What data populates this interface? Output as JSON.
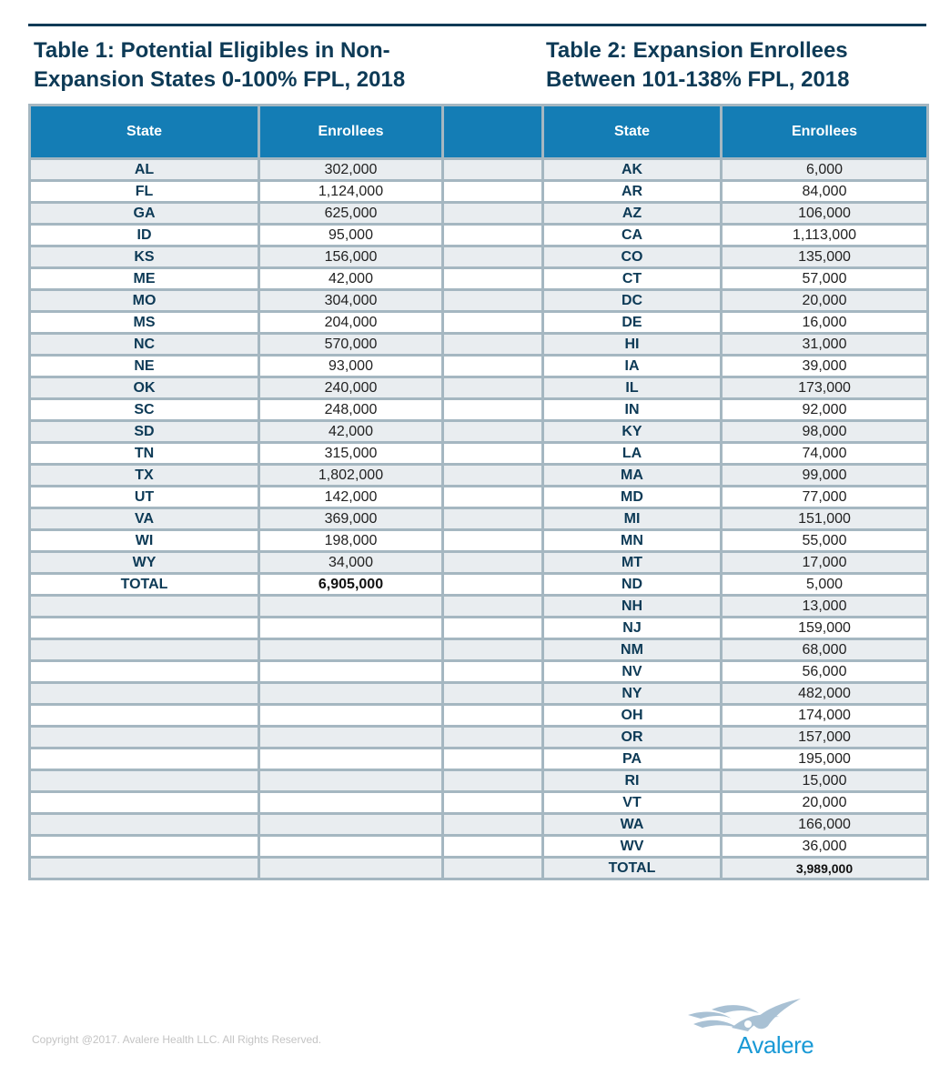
{
  "table1": {
    "title_line1": "Table 1: Potential Eligibles in Non-",
    "title_line2": "Expansion States 0-100% FPL, 2018",
    "headers": [
      "State",
      "Enrollees"
    ],
    "rows": [
      {
        "state": "AL",
        "enrollees": "302,000"
      },
      {
        "state": "FL",
        "enrollees": "1,124,000"
      },
      {
        "state": "GA",
        "enrollees": "625,000"
      },
      {
        "state": "ID",
        "enrollees": "95,000"
      },
      {
        "state": "KS",
        "enrollees": "156,000"
      },
      {
        "state": "ME",
        "enrollees": "42,000"
      },
      {
        "state": "MO",
        "enrollees": "304,000"
      },
      {
        "state": "MS",
        "enrollees": "204,000"
      },
      {
        "state": "NC",
        "enrollees": "570,000"
      },
      {
        "state": "NE",
        "enrollees": "93,000"
      },
      {
        "state": "OK",
        "enrollees": "240,000"
      },
      {
        "state": "SC",
        "enrollees": "248,000"
      },
      {
        "state": "SD",
        "enrollees": "42,000"
      },
      {
        "state": "TN",
        "enrollees": "315,000"
      },
      {
        "state": "TX",
        "enrollees": "1,802,000"
      },
      {
        "state": "UT",
        "enrollees": "142,000"
      },
      {
        "state": "VA",
        "enrollees": "369,000"
      },
      {
        "state": "WI",
        "enrollees": "198,000"
      },
      {
        "state": "WY",
        "enrollees": "34,000"
      }
    ],
    "total": {
      "label": "TOTAL",
      "value": "6,905,000"
    }
  },
  "table2": {
    "title_line1": "Table 2: Expansion Enrollees",
    "title_line2": "Between 101-138% FPL, 2018",
    "headers": [
      "State",
      "Enrollees"
    ],
    "rows": [
      {
        "state": "AK",
        "enrollees": "6,000"
      },
      {
        "state": "AR",
        "enrollees": "84,000"
      },
      {
        "state": "AZ",
        "enrollees": "106,000"
      },
      {
        "state": "CA",
        "enrollees": "1,113,000"
      },
      {
        "state": "CO",
        "enrollees": "135,000"
      },
      {
        "state": "CT",
        "enrollees": "57,000"
      },
      {
        "state": "DC",
        "enrollees": "20,000"
      },
      {
        "state": "DE",
        "enrollees": "16,000"
      },
      {
        "state": "HI",
        "enrollees": "31,000"
      },
      {
        "state": "IA",
        "enrollees": "39,000"
      },
      {
        "state": "IL",
        "enrollees": "173,000"
      },
      {
        "state": "IN",
        "enrollees": "92,000"
      },
      {
        "state": "KY",
        "enrollees": "98,000"
      },
      {
        "state": "LA",
        "enrollees": "74,000"
      },
      {
        "state": "MA",
        "enrollees": "99,000"
      },
      {
        "state": "MD",
        "enrollees": "77,000"
      },
      {
        "state": "MI",
        "enrollees": "151,000"
      },
      {
        "state": "MN",
        "enrollees": "55,000"
      },
      {
        "state": "MT",
        "enrollees": "17,000"
      },
      {
        "state": "ND",
        "enrollees": "5,000"
      },
      {
        "state": "NH",
        "enrollees": "13,000"
      },
      {
        "state": "NJ",
        "enrollees": "159,000"
      },
      {
        "state": "NM",
        "enrollees": "68,000"
      },
      {
        "state": "NV",
        "enrollees": "56,000"
      },
      {
        "state": "NY",
        "enrollees": "482,000"
      },
      {
        "state": "OH",
        "enrollees": "174,000"
      },
      {
        "state": "OR",
        "enrollees": "157,000"
      },
      {
        "state": "PA",
        "enrollees": "195,000"
      },
      {
        "state": "RI",
        "enrollees": "15,000"
      },
      {
        "state": "VT",
        "enrollees": "20,000"
      },
      {
        "state": "WA",
        "enrollees": "166,000"
      },
      {
        "state": "WV",
        "enrollees": "36,000"
      }
    ],
    "total": {
      "label": "TOTAL",
      "value": "3,989,000"
    }
  },
  "footer": {
    "copyright": "Copyright @2017. Avalere Health LLC. All Rights Reserved.",
    "logo_text": "Avalere"
  },
  "colors": {
    "header_bg": "#147db5",
    "title_text": "#0d3a56",
    "border": "#a5b7c1",
    "row_alt": "#e9edf0",
    "logo_text": "#1a9ad6",
    "logo_mark": "#a9c1d4"
  }
}
